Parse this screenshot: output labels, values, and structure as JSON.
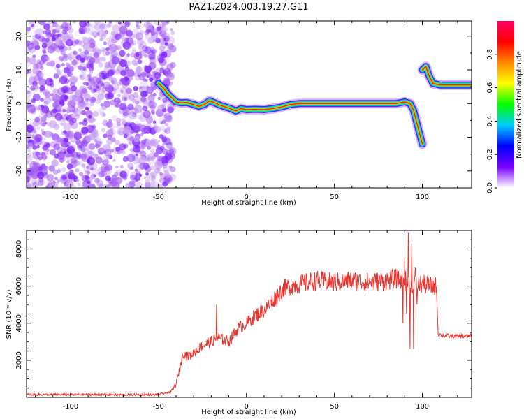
{
  "title": "PAZ1.2024.003.19.27.G11",
  "colors": {
    "snr_line": "#e8362f",
    "axis": "#000000",
    "background": "#ffffff",
    "noise": "#8a2be2"
  },
  "chart_data": [
    {
      "type": "heatmap",
      "name": "spectrogram",
      "xlabel": "Height of straight line (km)",
      "ylabel": "Frequency (Hz)",
      "xlim": [
        -125,
        128
      ],
      "ylim": [
        -25,
        24.5
      ],
      "xticks": [
        -100,
        -50,
        0,
        50,
        100
      ],
      "xtick_labels": [
        "-100",
        "-50",
        "0",
        "50",
        "100"
      ],
      "yticks": [
        -20,
        -10,
        0,
        10,
        20
      ],
      "ytick_labels": [
        "-20",
        "-10",
        "0",
        "10",
        "20"
      ],
      "noise_region": [
        -125,
        -45
      ],
      "ridge": [
        {
          "h": -50,
          "f": 6.0
        },
        {
          "h": -47,
          "f": 4.5
        },
        {
          "h": -45,
          "f": 3.0
        },
        {
          "h": -42,
          "f": 1.5
        },
        {
          "h": -40,
          "f": 0.5
        },
        {
          "h": -37,
          "f": 0.2
        },
        {
          "h": -34,
          "f": 0.3
        },
        {
          "h": -30,
          "f": -0.3
        },
        {
          "h": -27,
          "f": -0.8
        },
        {
          "h": -24,
          "f": -0.3
        },
        {
          "h": -21,
          "f": 0.8
        },
        {
          "h": -18,
          "f": 0.2
        },
        {
          "h": -15,
          "f": -0.5
        },
        {
          "h": -12,
          "f": -1.0
        },
        {
          "h": -9,
          "f": -1.5
        },
        {
          "h": -6,
          "f": -2.2
        },
        {
          "h": -3,
          "f": -1.5
        },
        {
          "h": 0,
          "f": -1.8
        },
        {
          "h": 5,
          "f": -1.7
        },
        {
          "h": 10,
          "f": -1.8
        },
        {
          "h": 15,
          "f": -1.5
        },
        {
          "h": 20,
          "f": -1.0
        },
        {
          "h": 25,
          "f": -0.3
        },
        {
          "h": 30,
          "f": 0.0
        },
        {
          "h": 50,
          "f": 0.0
        },
        {
          "h": 70,
          "f": 0.0
        },
        {
          "h": 85,
          "f": 0.0
        },
        {
          "h": 90,
          "f": 0.5
        },
        {
          "h": 93,
          "f": 0.0
        },
        {
          "h": 95,
          "f": -2.0
        },
        {
          "h": 97,
          "f": -6.0
        },
        {
          "h": 99,
          "f": -10.0
        },
        {
          "h": 100,
          "f": -12.0
        }
      ],
      "ridge2": [
        {
          "h": 100,
          "f": 10.0
        },
        {
          "h": 102,
          "f": 11.0
        },
        {
          "h": 104,
          "f": 8.0
        },
        {
          "h": 106,
          "f": 6.0
        },
        {
          "h": 110,
          "f": 5.5
        },
        {
          "h": 115,
          "f": 5.5
        },
        {
          "h": 120,
          "f": 5.5
        },
        {
          "h": 128,
          "f": 5.5
        }
      ]
    },
    {
      "type": "colorbar",
      "name": "colorbar",
      "label": "Normalized spectral amplitude",
      "range": [
        0,
        1
      ],
      "ticks": [
        0.0,
        0.2,
        0.4,
        0.6,
        0.8
      ],
      "tick_labels": [
        "0.0",
        "0.2",
        "0.4",
        "0.6",
        "0.8"
      ],
      "stops": [
        "#ffffff",
        "#7a00ff",
        "#0000ff",
        "#00ccff",
        "#00ff00",
        "#ffff00",
        "#ff8800",
        "#ff0000",
        "#ff0066"
      ]
    },
    {
      "type": "line",
      "name": "snr",
      "xlabel": "Height of straight line (km)",
      "ylabel": "SNR (10 * v/v)",
      "xlim": [
        -125,
        128
      ],
      "ylim": [
        0,
        9000
      ],
      "xticks": [
        -100,
        -50,
        0,
        50,
        100
      ],
      "xtick_labels": [
        "-100",
        "-50",
        "0",
        "50",
        "100"
      ],
      "yticks": [
        2000,
        4000,
        6000,
        8000
      ],
      "ytick_labels": [
        "2000",
        "4000",
        "6000",
        "8000"
      ],
      "points": [
        {
          "x": -125,
          "y": 150
        },
        {
          "x": -100,
          "y": 150
        },
        {
          "x": -70,
          "y": 140
        },
        {
          "x": -50,
          "y": 150
        },
        {
          "x": -43,
          "y": 300
        },
        {
          "x": -40,
          "y": 700
        },
        {
          "x": -38,
          "y": 1500
        },
        {
          "x": -36,
          "y": 2400
        },
        {
          "x": -33,
          "y": 2200
        },
        {
          "x": -30,
          "y": 2400
        },
        {
          "x": -25,
          "y": 2800
        },
        {
          "x": -20,
          "y": 3000
        },
        {
          "x": -16,
          "y": 3200
        },
        {
          "x": -10,
          "y": 3000
        },
        {
          "x": -5,
          "y": 3700
        },
        {
          "x": 0,
          "y": 4000
        },
        {
          "x": 5,
          "y": 4400
        },
        {
          "x": 10,
          "y": 4700
        },
        {
          "x": 15,
          "y": 5200
        },
        {
          "x": 20,
          "y": 5800
        },
        {
          "x": 25,
          "y": 6000
        },
        {
          "x": 30,
          "y": 6100
        },
        {
          "x": 40,
          "y": 6300
        },
        {
          "x": 50,
          "y": 6200
        },
        {
          "x": 60,
          "y": 6300
        },
        {
          "x": 70,
          "y": 6200
        },
        {
          "x": 80,
          "y": 6300
        },
        {
          "x": 85,
          "y": 6400
        },
        {
          "x": 90,
          "y": 6300
        },
        {
          "x": 95,
          "y": 6100
        },
        {
          "x": 100,
          "y": 6100
        },
        {
          "x": 105,
          "y": 6000
        },
        {
          "x": 108,
          "y": 6000
        },
        {
          "x": 109,
          "y": 3400
        },
        {
          "x": 115,
          "y": 3300
        },
        {
          "x": 120,
          "y": 3300
        },
        {
          "x": 128,
          "y": 3300
        }
      ],
      "spikes": [
        {
          "x": -17,
          "y": 5000
        },
        {
          "x": 89,
          "y": 4000
        },
        {
          "x": 90,
          "y": 7500
        },
        {
          "x": 91,
          "y": 4500
        },
        {
          "x": 92,
          "y": 8900
        },
        {
          "x": 93,
          "y": 2600
        },
        {
          "x": 94,
          "y": 8300
        },
        {
          "x": 95,
          "y": 2600
        },
        {
          "x": 96,
          "y": 7000
        },
        {
          "x": 97,
          "y": 5000
        }
      ]
    }
  ]
}
